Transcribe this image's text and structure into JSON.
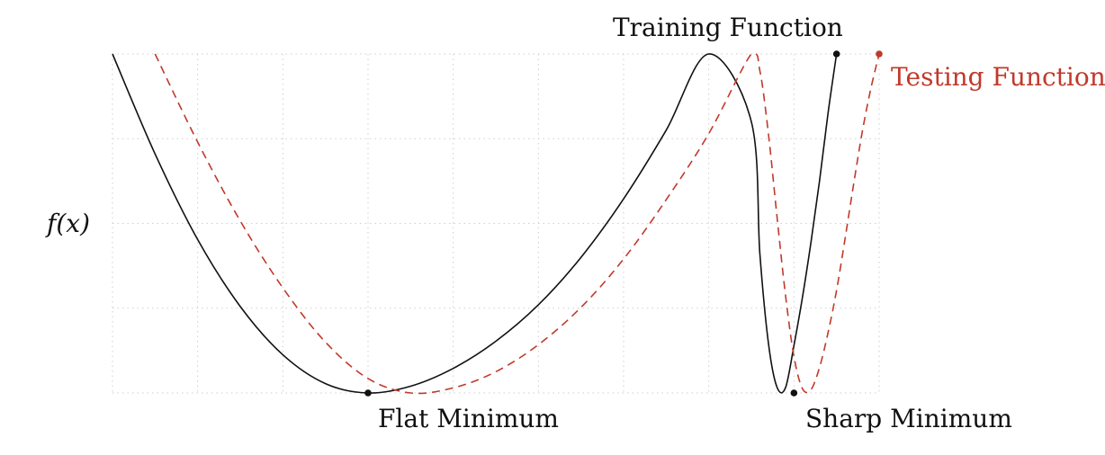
{
  "chart_data": {
    "type": "line",
    "title": "",
    "xlabel": "",
    "ylabel": "f(x)",
    "grid": true,
    "xlim": [
      0,
      9
    ],
    "ylim": [
      0,
      4
    ],
    "series": [
      {
        "name": "Training Function",
        "color": "#111111",
        "style": "solid",
        "x": [
          0,
          0.5,
          1,
          1.5,
          2,
          2.5,
          3,
          3.5,
          4,
          4.5,
          5,
          5.5,
          6,
          6.5,
          7,
          7.5,
          7.6,
          7.7,
          7.8,
          7.9,
          8,
          8.1,
          8.2,
          8.3,
          8.4,
          8.5
        ],
        "y": [
          4,
          2.82,
          1.81,
          1.02,
          0.45,
          0.11,
          0,
          0.08,
          0.29,
          0.61,
          1.04,
          1.6,
          2.29,
          3.1,
          4,
          3.2,
          1.64,
          0.59,
          0.07,
          0.06,
          0.56,
          1.13,
          1.78,
          2.5,
          3.3,
          4
        ]
      },
      {
        "name": "Testing Function",
        "color": "#c0392b",
        "style": "dashed",
        "x": [
          0.5,
          1,
          1.5,
          2,
          2.5,
          3,
          3.5,
          4,
          4.5,
          5,
          5.5,
          6,
          6.5,
          7,
          7.5,
          7.6,
          7.7,
          7.8,
          7.9,
          8,
          8.1,
          8.2,
          8.3,
          8.4,
          8.5,
          8.6,
          8.7,
          8.8,
          8.9,
          9
        ],
        "y": [
          4,
          2.96,
          2.03,
          1.24,
          0.6,
          0.17,
          0,
          0.06,
          0.25,
          0.57,
          1.01,
          1.58,
          2.28,
          3.06,
          4,
          3.8,
          3.06,
          2.09,
          1.16,
          0.43,
          0.05,
          0.04,
          0.3,
          0.71,
          1.21,
          1.82,
          2.46,
          3.07,
          3.58,
          4
        ]
      }
    ],
    "annotations": [
      {
        "id": "flat",
        "text": "Flat Minimum",
        "x": 3,
        "y": 0,
        "marker_color": "#111111"
      },
      {
        "id": "sharp",
        "text": "Sharp Minimum",
        "x": 8,
        "y": 0,
        "marker_color": "#111111"
      },
      {
        "id": "train-end",
        "text": "Training Function",
        "x": 8.5,
        "y": 4,
        "marker_color": "#111111"
      },
      {
        "id": "test-end",
        "text": "Testing Function",
        "x": 9,
        "y": 4,
        "marker_color": "#c0392b"
      }
    ]
  }
}
